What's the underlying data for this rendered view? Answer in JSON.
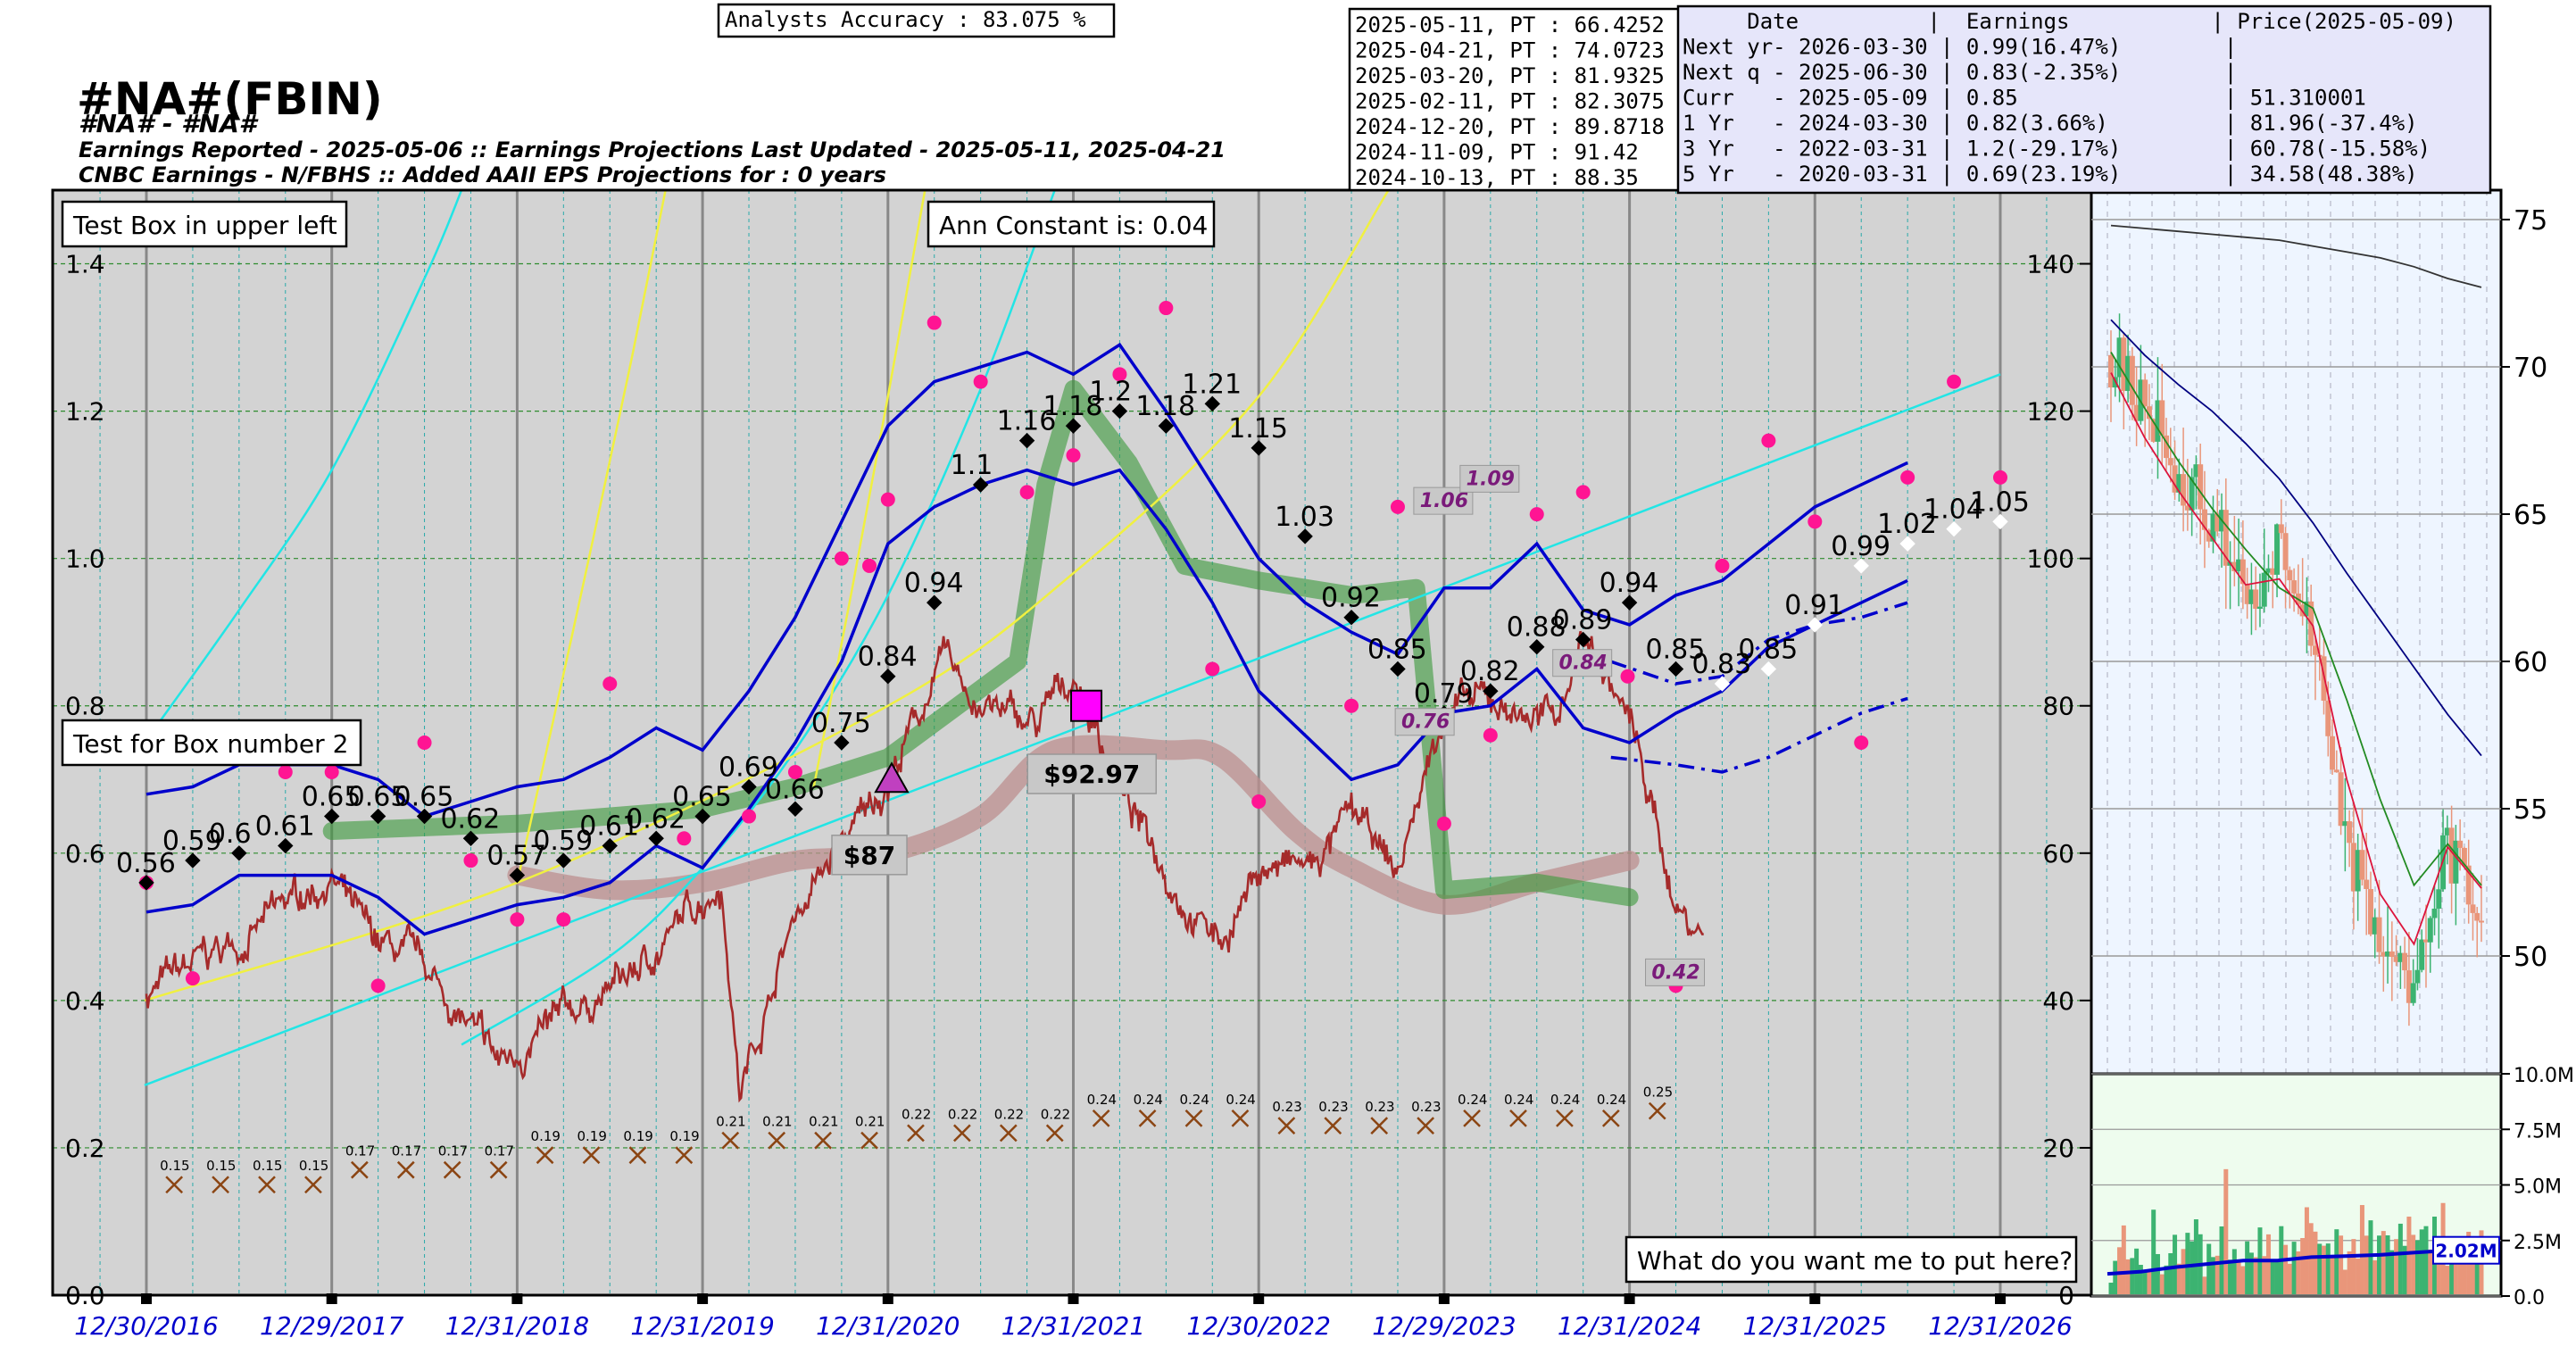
{
  "header": {
    "accuracy": "Analysts Accuracy :  83.075 %",
    "ticker": "#NA#(FBIN)",
    "subtitle1": "#NA# - #NA#",
    "subtitle2": "Earnings Reported - 2025-05-06 :: Earnings Projections Last Updated - 2025-05-11, 2025-04-21",
    "subtitle3": "CNBC Earnings - N/FBHS :: Added AAII EPS Projections for : 0 years"
  },
  "pt_table": [
    "2025-05-11, PT : 66.4252",
    "2025-04-21, PT : 74.0723",
    "2025-03-20, PT : 81.9325",
    "2025-02-11, PT : 82.3075",
    "2024-12-20, PT : 89.8718",
    "2024-11-09, PT : 91.42",
    "2024-10-13, PT : 88.35"
  ],
  "earn_table": [
    "     Date          |  Earnings           | Price(2025-05-09)",
    "Next yr- 2026-03-30 | 0.99(16.47%)        |",
    "Next q - 2025-06-30 | 0.83(-2.35%)        |",
    "Curr   - 2025-05-09 | 0.85                | 51.310001",
    "1 Yr   - 2024-03-30 | 0.82(3.66%)         | 81.96(-37.4%)",
    "3 Yr   - 2022-03-31 | 1.2(-29.17%)        | 60.78(-15.58%)",
    "5 Yr   - 2020-03-31 | 0.69(23.19%)        | 34.58(48.38%)"
  ],
  "boxes": {
    "upper_left": "Test Box in upper left",
    "constant": "Ann Constant is: 0.04",
    "box2": "Test for Box number 2",
    "bottom_right": "What do you want me to put here?"
  },
  "colors": {
    "panel_bg": "#d3d3d3",
    "eps_line": "#0000cc",
    "price": "#a52a2a",
    "green_band": "#3a9a3a",
    "pink_band": "#bc8f8f",
    "cyan": "#22e5e5",
    "yellow": "#f0f040",
    "magenta": "#ff1493",
    "side_bg": "#eef5ff",
    "vol_bg": "#eefcee"
  },
  "chart_data": [
    {
      "type": "line",
      "name": "main-eps-price",
      "ylim_left": [
        0.0,
        1.5
      ],
      "ylim_right": [
        0,
        150
      ],
      "yticks_left": [
        "0.0",
        "0.2",
        "0.4",
        "0.6",
        "0.8",
        "1.0",
        "1.2",
        "1.4"
      ],
      "yticks_right": [
        "0",
        "20",
        "40",
        "60",
        "80",
        "100",
        "120",
        "140"
      ],
      "x_years": [
        2016.99,
        2027.4
      ],
      "xtick_labels": [
        "12/30/2016",
        "12/29/2017",
        "12/31/2018",
        "12/31/2019",
        "12/31/2020",
        "12/31/2021",
        "12/30/2022",
        "12/29/2023",
        "12/31/2024",
        "12/31/2025",
        "12/31/2026"
      ],
      "xtick_years": [
        2017.0,
        2018.0,
        2019.0,
        2020.0,
        2021.0,
        2022.0,
        2023.0,
        2024.0,
        2025.0,
        2026.0,
        2027.0
      ],
      "eps_actual": {
        "x": [
          2017.0,
          2017.25,
          2017.5,
          2017.75,
          2018.0,
          2018.25,
          2018.5,
          2018.75,
          2019.0,
          2019.25,
          2019.5,
          2019.75,
          2020.0,
          2020.25,
          2020.5,
          2020.75,
          2021.0,
          2021.25,
          2021.5,
          2021.75,
          2022.0,
          2022.25,
          2022.5,
          2022.75,
          2023.0,
          2023.25,
          2023.5,
          2023.75,
          2024.0,
          2024.25,
          2024.5,
          2024.75,
          2025.0,
          2025.25
        ],
        "y": [
          0.56,
          0.59,
          0.6,
          0.61,
          0.65,
          0.65,
          0.65,
          0.62,
          0.57,
          0.59,
          0.61,
          0.62,
          0.65,
          0.69,
          0.66,
          0.75,
          0.84,
          0.94,
          1.1,
          1.16,
          1.18,
          1.2,
          1.18,
          1.21,
          1.15,
          1.03,
          0.92,
          0.85,
          0.79,
          0.82,
          0.88,
          0.89,
          0.94,
          0.85
        ],
        "labels": [
          "0.56",
          "0.59",
          "0.6",
          "0.61",
          "0.65",
          "0.65",
          "0.65",
          "0.62",
          "0.57",
          "0.59",
          "0.61",
          "0.62",
          "0.65",
          "0.69",
          "0.66",
          "0.75",
          "0.84",
          "0.94",
          "1.1",
          "1.16",
          "1.18",
          "1.2",
          "1.18",
          "1.21",
          "1.15",
          "1.03",
          "0.92",
          "0.85",
          "0.79",
          "0.82",
          "0.88",
          "0.89",
          "0.94",
          "0.85"
        ]
      },
      "eps_projected": {
        "x": [
          2025.5,
          2025.75,
          2026.0,
          2026.25,
          2026.5,
          2026.75,
          2027.0
        ],
        "y": [
          0.83,
          0.85,
          0.91,
          0.99,
          1.02,
          1.04,
          1.05
        ],
        "labels": [
          "0.83",
          "0.85",
          "0.91",
          "0.99",
          "1.02",
          "1.04",
          "1.05"
        ]
      },
      "eps_upper": {
        "x": [
          2017.0,
          2017.25,
          2017.5,
          2017.75,
          2018.0,
          2018.25,
          2018.5,
          2018.75,
          2019.0,
          2019.25,
          2019.5,
          2019.75,
          2020.0,
          2020.25,
          2020.5,
          2020.75,
          2021.0,
          2021.25,
          2021.5,
          2021.75,
          2022.0,
          2022.25,
          2022.5,
          2022.75,
          2023.0,
          2023.25,
          2023.5,
          2023.75,
          2024.0,
          2024.25,
          2024.5,
          2024.75,
          2025.0,
          2025.25,
          2025.5,
          2025.75,
          2026.0,
          2026.25,
          2026.5
        ],
        "y": [
          0.68,
          0.69,
          0.72,
          0.72,
          0.72,
          0.7,
          0.65,
          0.67,
          0.69,
          0.7,
          0.73,
          0.77,
          0.74,
          0.82,
          0.92,
          1.05,
          1.18,
          1.24,
          1.26,
          1.28,
          1.25,
          1.29,
          1.2,
          1.1,
          1.0,
          0.94,
          0.9,
          0.87,
          0.96,
          0.96,
          1.02,
          0.93,
          0.91,
          0.95,
          0.97,
          1.02,
          1.07,
          1.1,
          1.13
        ]
      },
      "eps_lower": {
        "x": [
          2017.0,
          2017.25,
          2017.5,
          2017.75,
          2018.0,
          2018.25,
          2018.5,
          2018.75,
          2019.0,
          2019.25,
          2019.5,
          2019.75,
          2020.0,
          2020.25,
          2020.5,
          2020.75,
          2021.0,
          2021.25,
          2021.5,
          2021.75,
          2022.0,
          2022.25,
          2022.5,
          2022.75,
          2023.0,
          2023.25,
          2023.5,
          2023.75,
          2024.0,
          2024.25,
          2024.5,
          2024.75,
          2025.0,
          2025.25,
          2025.5,
          2025.75,
          2026.0,
          2026.25,
          2026.5
        ],
        "y": [
          0.52,
          0.53,
          0.57,
          0.57,
          0.57,
          0.54,
          0.49,
          0.51,
          0.53,
          0.54,
          0.56,
          0.61,
          0.58,
          0.66,
          0.75,
          0.86,
          1.02,
          1.07,
          1.1,
          1.12,
          1.1,
          1.12,
          1.04,
          0.94,
          0.82,
          0.76,
          0.7,
          0.72,
          0.79,
          0.8,
          0.85,
          0.77,
          0.75,
          0.79,
          0.82,
          0.88,
          0.91,
          0.94,
          0.97
        ]
      },
      "eps_dashdot": {
        "x": [
          2024.9,
          2025.25,
          2025.5,
          2025.75,
          2026.0,
          2026.25,
          2026.5
        ],
        "y": [
          0.73,
          0.72,
          0.71,
          0.73,
          0.76,
          0.79,
          0.81
        ]
      },
      "eps_dashdot2": {
        "x": [
          2024.9,
          2025.25,
          2025.5,
          2025.75,
          2026.0,
          2026.25,
          2026.5
        ],
        "y": [
          0.86,
          0.83,
          0.84,
          0.89,
          0.91,
          0.92,
          0.94
        ]
      },
      "green_band": {
        "x": [
          2018.0,
          2019.0,
          2020.0,
          2020.5,
          2021.0,
          2021.7,
          2021.85,
          2022.0,
          2022.3,
          2022.6,
          2023.0,
          2023.5,
          2023.85,
          2024.0,
          2024.5,
          2025.0
        ],
        "y": [
          0.63,
          0.64,
          0.66,
          0.69,
          0.73,
          0.86,
          1.1,
          1.23,
          1.13,
          0.99,
          0.97,
          0.95,
          0.96,
          0.55,
          0.56,
          0.54
        ]
      },
      "pink_band": {
        "x": [
          2019.0,
          2019.5,
          2020.0,
          2020.5,
          2021.0,
          2021.5,
          2021.9,
          2022.5,
          2022.8,
          2023.2,
          2023.5,
          2024.0,
          2024.5,
          2025.0
        ],
        "y": [
          0.57,
          0.55,
          0.56,
          0.59,
          0.6,
          0.65,
          0.74,
          0.74,
          0.73,
          0.63,
          0.58,
          0.53,
          0.56,
          0.59
        ]
      },
      "price_anchor": {
        "x": [
          2017.0,
          2017.5,
          2018.0,
          2018.2,
          2018.5,
          2018.9,
          2019.3,
          2019.7,
          2020.1,
          2020.2,
          2020.5,
          2020.9,
          2021.0,
          2021.3,
          2021.5,
          2021.8,
          2022.0,
          2022.3,
          2022.6,
          2022.8,
          2023.0,
          2023.3,
          2023.5,
          2023.75,
          2024.0,
          2024.3,
          2024.6,
          2024.75,
          2025.0,
          2025.25,
          2025.4
        ],
        "y": [
          41,
          48,
          57,
          48,
          44,
          31,
          38,
          45,
          57,
          28,
          52,
          66,
          70,
          86,
          80,
          77,
          84,
          66,
          54,
          48,
          58,
          58,
          65,
          57,
          80,
          80,
          78,
          90,
          78,
          53,
          49
        ]
      },
      "cyan_curve1": {
        "x": [
          2016.99,
          2017.5,
          2018.0,
          2018.5,
          2018.7
        ],
        "y": [
          0.75,
          0.93,
          1.12,
          1.38,
          1.5
        ]
      },
      "cyan_curve2": {
        "x": [
          2018.7,
          2019.5,
          2020.0,
          2020.5,
          2021.0,
          2021.5,
          2021.9
        ],
        "y": [
          0.34,
          0.46,
          0.58,
          0.74,
          0.95,
          1.23,
          1.5
        ]
      },
      "cyan_line": {
        "x": [
          2016.99,
          2027.0
        ],
        "y": [
          0.285,
          1.25
        ]
      },
      "yellow_curve1": {
        "x": [
          2019.0,
          2019.3,
          2019.6,
          2019.8
        ],
        "y": [
          0.56,
          0.9,
          1.25,
          1.5
        ]
      },
      "yellow_curve2": {
        "x": [
          2020.6,
          2020.8,
          2021.0,
          2021.2
        ],
        "y": [
          0.69,
          0.95,
          1.22,
          1.5
        ]
      },
      "yellow_line": {
        "x": [
          2016.99,
          2019.0,
          2021.0,
          2022.0,
          2023.0,
          2023.7
        ],
        "y": [
          0.4,
          0.56,
          0.8,
          0.98,
          1.22,
          1.5
        ]
      },
      "magenta_dots": {
        "x": [
          2017.0,
          2017.25,
          2017.75,
          2018.0,
          2018.25,
          2018.5,
          2018.75,
          2019.0,
          2019.25,
          2019.5,
          2019.9,
          2020.25,
          2020.5,
          2020.75,
          2020.9,
          2021.0,
          2021.25,
          2021.5,
          2021.75,
          2022.0,
          2022.25,
          2022.5,
          2022.75,
          2023.0,
          2023.5,
          2023.75,
          2024.0,
          2024.25,
          2024.5,
          2024.75,
          2024.99,
          2025.25,
          2025.5,
          2025.75,
          2026.0,
          2026.25,
          2026.5,
          2026.75,
          2027.0
        ],
        "y": [
          0.56,
          0.43,
          0.71,
          0.71,
          0.42,
          0.75,
          0.59,
          0.51,
          0.51,
          0.83,
          0.62,
          0.65,
          0.71,
          1.0,
          0.99,
          1.08,
          1.32,
          1.24,
          1.09,
          1.14,
          1.25,
          1.34,
          0.85,
          0.67,
          0.8,
          1.07,
          0.64,
          0.76,
          1.06,
          1.09,
          0.84,
          0.42,
          0.99,
          1.16,
          1.05,
          0.75,
          1.11,
          1.24,
          1.11
        ]
      },
      "x_markers": {
        "x": [
          2017.15,
          2017.4,
          2017.65,
          2017.9,
          2018.15,
          2018.4,
          2018.65,
          2018.9,
          2019.15,
          2019.4,
          2019.65,
          2019.9,
          2020.15,
          2020.4,
          2020.65,
          2020.9,
          2021.15,
          2021.4,
          2021.65,
          2021.9,
          2022.15,
          2022.4,
          2022.65,
          2022.9,
          2023.15,
          2023.4,
          2023.65,
          2023.9,
          2024.15,
          2024.4,
          2024.65,
          2024.9,
          2025.15
        ],
        "y": [
          0.15,
          0.15,
          0.15,
          0.15,
          0.17,
          0.17,
          0.17,
          0.17,
          0.19,
          0.19,
          0.19,
          0.19,
          0.21,
          0.21,
          0.21,
          0.21,
          0.22,
          0.22,
          0.22,
          0.22,
          0.24,
          0.24,
          0.24,
          0.24,
          0.23,
          0.23,
          0.23,
          0.23,
          0.24,
          0.24,
          0.24,
          0.24,
          0.25
        ],
        "labels": [
          "0.15",
          "0.15",
          "0.15",
          "0.15",
          "0.17",
          "0.17",
          "0.17",
          "0.17",
          "0.19",
          "0.19",
          "0.19",
          "0.19",
          "0.21",
          "0.21",
          "0.21",
          "0.21",
          "0.22",
          "0.22",
          "0.22",
          "0.22",
          "0.24",
          "0.24",
          "0.24",
          "0.24",
          "0.23",
          "0.23",
          "0.23",
          "0.23",
          "0.24",
          "0.24",
          "0.24",
          "0.24",
          "0.25"
        ]
      },
      "price_tags": [
        {
          "x": 2020.9,
          "price": 60,
          "label": "$87"
        },
        {
          "x": 2022.1,
          "price": 71,
          "label": "$92.97"
        }
      ],
      "purple_tags": [
        {
          "x": 2024.0,
          "y": 1.06,
          "label": "1.06"
        },
        {
          "x": 2024.25,
          "y": 1.09,
          "label": "1.09"
        },
        {
          "x": 2024.75,
          "y": 0.84,
          "label": "0.84"
        },
        {
          "x": 2023.9,
          "y": 0.76,
          "label": "0.76"
        },
        {
          "x": 2025.25,
          "y": 0.42,
          "label": "0.42"
        }
      ],
      "square_marker": {
        "x": 2022.07,
        "y": 0.8
      },
      "triangle_marker": {
        "x": 2021.02,
        "y": 0.7
      }
    },
    {
      "type": "candlestick",
      "name": "recent-price",
      "ylim": [
        46,
        76
      ],
      "yticks": [
        "50",
        "55",
        "60",
        "65",
        "70",
        "75"
      ],
      "ma_black": [
        74.8,
        74.7,
        74.6,
        74.5,
        74.4,
        74.3,
        74.1,
        73.9,
        73.7,
        73.4,
        73.0,
        72.7
      ],
      "ma_navy": [
        71.6,
        70.4,
        69.4,
        68.5,
        67.4,
        66.2,
        64.7,
        63.0,
        61.4,
        59.8,
        58.2,
        56.8
      ],
      "ma_green": [
        70.5,
        68.6,
        66.8,
        65.2,
        63.8,
        62.5,
        61.8,
        58.7,
        55.3,
        52.4,
        53.8,
        52.4
      ],
      "ma_red": [
        69.8,
        67.6,
        65.8,
        64.2,
        62.6,
        62.8,
        61.2,
        56.0,
        52.1,
        50.4,
        53.7,
        52.3
      ],
      "anchors": [
        70.4,
        68.6,
        66.5,
        64.8,
        62.3,
        63.8,
        61.2,
        53.4,
        50.8,
        48.7,
        53.9,
        50.5
      ]
    },
    {
      "type": "bar",
      "name": "volume",
      "ylim": [
        0,
        10
      ],
      "yticks": [
        "0.0",
        "2.5M",
        "5.0M",
        "7.5M",
        "10.0M"
      ],
      "avg_label": "2.02M",
      "avg_line": [
        1.0,
        1.1,
        1.3,
        1.45,
        1.6,
        1.6,
        1.75,
        1.8,
        1.85,
        1.95,
        2.05,
        2.1
      ]
    }
  ]
}
